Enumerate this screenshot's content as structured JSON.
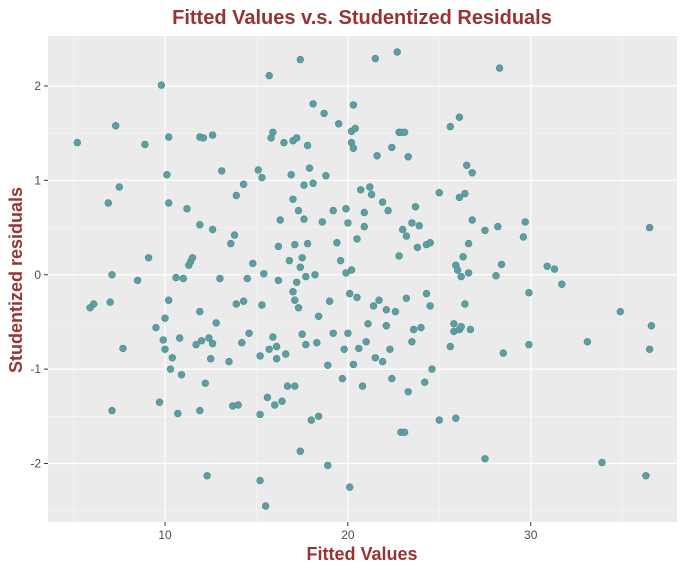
{
  "colors": {
    "title": "#993333",
    "panel_background": "#ebebeb",
    "grid_major": "#ffffff",
    "grid_minor": "#f5f5f5",
    "point_fill": "#5f9ea0",
    "point_stroke": "#4a8c8e",
    "tick_text": "#4d4d4d",
    "tick_mark": "#333333"
  },
  "chart_data": {
    "type": "scatter",
    "title": "Fitted Values v.s. Studentized Residuals",
    "xlabel": "Fitted Values",
    "ylabel": "Studentized residuals",
    "xlim": [
      3.6,
      38.0
    ],
    "ylim": [
      -2.62,
      2.53
    ],
    "x_ticks": [
      10,
      20,
      30
    ],
    "y_ticks": [
      -2,
      -1,
      0,
      1,
      2
    ],
    "x_tick_labels": [
      "10",
      "20",
      "30"
    ],
    "y_tick_labels": [
      "-2",
      "-1",
      "0",
      "1",
      "2"
    ],
    "grid": true,
    "legend": "none",
    "points": [
      [
        5.2,
        1.4
      ],
      [
        5.9,
        -0.35
      ],
      [
        6.1,
        -0.31
      ],
      [
        6.9,
        0.76
      ],
      [
        7.0,
        -0.29
      ],
      [
        7.1,
        0.0
      ],
      [
        7.1,
        -1.44
      ],
      [
        7.3,
        1.58
      ],
      [
        7.5,
        0.93
      ],
      [
        7.7,
        -0.78
      ],
      [
        8.5,
        -0.06
      ],
      [
        8.9,
        1.38
      ],
      [
        9.1,
        0.18
      ],
      [
        9.5,
        -0.56
      ],
      [
        9.7,
        -1.35
      ],
      [
        9.8,
        2.01
      ],
      [
        9.9,
        -0.69
      ],
      [
        10.0,
        -0.46
      ],
      [
        10.0,
        -0.79
      ],
      [
        10.1,
        1.06
      ],
      [
        10.2,
        1.46
      ],
      [
        10.2,
        0.76
      ],
      [
        10.2,
        -0.27
      ],
      [
        10.3,
        -1.0
      ],
      [
        10.4,
        -0.88
      ],
      [
        10.6,
        -0.03
      ],
      [
        10.7,
        -1.47
      ],
      [
        10.8,
        -0.67
      ],
      [
        10.9,
        -1.06
      ],
      [
        11.0,
        -0.04
      ],
      [
        11.2,
        0.7
      ],
      [
        11.3,
        0.1
      ],
      [
        11.4,
        0.14
      ],
      [
        11.5,
        0.18
      ],
      [
        11.7,
        -0.74
      ],
      [
        11.9,
        1.46
      ],
      [
        11.9,
        0.53
      ],
      [
        11.9,
        -0.39
      ],
      [
        11.9,
        -1.44
      ],
      [
        12.0,
        -0.7
      ],
      [
        12.1,
        1.45
      ],
      [
        12.2,
        -1.15
      ],
      [
        12.3,
        -2.13
      ],
      [
        12.4,
        -0.67
      ],
      [
        12.5,
        -0.89
      ],
      [
        12.6,
        0.48
      ],
      [
        12.6,
        -0.73
      ],
      [
        12.6,
        1.48
      ],
      [
        12.8,
        -0.51
      ],
      [
        13.0,
        -0.04
      ],
      [
        13.1,
        1.1
      ],
      [
        13.5,
        -0.92
      ],
      [
        13.6,
        0.33
      ],
      [
        13.7,
        -1.39
      ],
      [
        13.8,
        0.42
      ],
      [
        13.9,
        0.84
      ],
      [
        13.9,
        -0.31
      ],
      [
        14.0,
        -1.38
      ],
      [
        14.2,
        -0.72
      ],
      [
        14.3,
        0.96
      ],
      [
        14.3,
        -0.28
      ],
      [
        14.5,
        -0.04
      ],
      [
        14.6,
        -0.62
      ],
      [
        14.8,
        0.12
      ],
      [
        15.1,
        1.11
      ],
      [
        15.2,
        -0.86
      ],
      [
        15.2,
        -2.18
      ],
      [
        15.2,
        -1.48
      ],
      [
        15.3,
        1.03
      ],
      [
        15.3,
        -0.32
      ],
      [
        15.4,
        0.01
      ],
      [
        15.5,
        -2.45
      ],
      [
        15.6,
        -1.3
      ],
      [
        15.7,
        -0.79
      ],
      [
        15.7,
        2.11
      ],
      [
        15.8,
        1.45
      ],
      [
        15.9,
        1.51
      ],
      [
        15.9,
        -0.66
      ],
      [
        16.0,
        -1.38
      ],
      [
        16.1,
        -0.89
      ],
      [
        16.1,
        -0.76
      ],
      [
        16.2,
        0.3
      ],
      [
        16.2,
        -0.06
      ],
      [
        16.3,
        0.58
      ],
      [
        16.4,
        -1.34
      ],
      [
        16.5,
        1.4
      ],
      [
        16.6,
        -0.84
      ],
      [
        16.7,
        -1.18
      ],
      [
        16.8,
        0.15
      ],
      [
        16.9,
        1.06
      ],
      [
        17.0,
        -0.18
      ],
      [
        17.0,
        1.42
      ],
      [
        17.0,
        0.8
      ],
      [
        17.1,
        0.32
      ],
      [
        17.1,
        -0.27
      ],
      [
        17.1,
        -1.18
      ],
      [
        17.2,
        -0.08
      ],
      [
        17.2,
        1.45
      ],
      [
        17.3,
        0.68
      ],
      [
        17.3,
        -0.35
      ],
      [
        17.4,
        0.08
      ],
      [
        17.4,
        -1.87
      ],
      [
        17.4,
        2.28
      ],
      [
        17.5,
        -0.63
      ],
      [
        17.5,
        0.18
      ],
      [
        17.6,
        0.59
      ],
      [
        17.6,
        0.95
      ],
      [
        17.7,
        -0.02
      ],
      [
        17.7,
        -0.74
      ],
      [
        17.8,
        1.37
      ],
      [
        17.8,
        0.33
      ],
      [
        17.9,
        1.13
      ],
      [
        18.0,
        -1.54
      ],
      [
        18.1,
        0.97
      ],
      [
        18.1,
        1.81
      ],
      [
        18.2,
        0.0
      ],
      [
        18.3,
        -0.72
      ],
      [
        18.4,
        -0.44
      ],
      [
        18.4,
        -1.5
      ],
      [
        18.6,
        0.56
      ],
      [
        18.7,
        1.71
      ],
      [
        18.8,
        1.05
      ],
      [
        18.9,
        -0.96
      ],
      [
        18.9,
        -2.02
      ],
      [
        19.0,
        -0.28
      ],
      [
        19.2,
        0.68
      ],
      [
        19.2,
        -0.62
      ],
      [
        19.4,
        0.34
      ],
      [
        19.5,
        1.6
      ],
      [
        19.6,
        0.15
      ],
      [
        19.7,
        -1.1
      ],
      [
        19.8,
        -0.79
      ],
      [
        19.9,
        0.7
      ],
      [
        19.9,
        0.02
      ],
      [
        20.0,
        -0.62
      ],
      [
        20.0,
        0.55
      ],
      [
        20.1,
        -0.2
      ],
      [
        20.1,
        -2.25
      ],
      [
        20.2,
        0.05
      ],
      [
        20.2,
        1.52
      ],
      [
        20.2,
        1.4
      ],
      [
        20.3,
        1.34
      ],
      [
        20.3,
        1.8
      ],
      [
        20.3,
        -0.95
      ],
      [
        20.4,
        1.55
      ],
      [
        20.5,
        0.38
      ],
      [
        20.5,
        -0.24
      ],
      [
        20.6,
        -0.78
      ],
      [
        20.7,
        0.9
      ],
      [
        20.8,
        -1.18
      ],
      [
        20.9,
        0.66
      ],
      [
        20.9,
        0.51
      ],
      [
        21.0,
        -0.71
      ],
      [
        21.1,
        -0.52
      ],
      [
        21.2,
        0.93
      ],
      [
        21.3,
        0.85
      ],
      [
        21.4,
        -0.33
      ],
      [
        21.5,
        2.29
      ],
      [
        21.5,
        -0.88
      ],
      [
        21.6,
        1.26
      ],
      [
        21.7,
        -0.27
      ],
      [
        21.9,
        -0.92
      ],
      [
        21.9,
        0.77
      ],
      [
        22.1,
        -0.54
      ],
      [
        22.1,
        -0.37
      ],
      [
        22.2,
        0.68
      ],
      [
        22.3,
        -0.79
      ],
      [
        22.4,
        -1.1
      ],
      [
        22.4,
        1.35
      ],
      [
        22.6,
        -0.39
      ],
      [
        22.7,
        2.36
      ],
      [
        22.8,
        0.2
      ],
      [
        22.8,
        1.51
      ],
      [
        22.9,
        1.51
      ],
      [
        22.9,
        -1.67
      ],
      [
        23.0,
        0.48
      ],
      [
        23.1,
        1.51
      ],
      [
        23.1,
        -1.67
      ],
      [
        23.2,
        0.41
      ],
      [
        23.2,
        -0.25
      ],
      [
        23.3,
        1.25
      ],
      [
        23.3,
        -1.24
      ],
      [
        23.5,
        -0.71
      ],
      [
        23.5,
        0.55
      ],
      [
        23.6,
        -0.58
      ],
      [
        23.7,
        0.72
      ],
      [
        23.8,
        0.29
      ],
      [
        23.9,
        0.52
      ],
      [
        24.0,
        -0.56
      ],
      [
        24.2,
        -1.14
      ],
      [
        24.3,
        -0.2
      ],
      [
        24.3,
        0.32
      ],
      [
        24.5,
        -0.33
      ],
      [
        24.5,
        0.34
      ],
      [
        24.6,
        -1.0
      ],
      [
        25.0,
        0.87
      ],
      [
        25.0,
        -1.54
      ],
      [
        25.6,
        1.57
      ],
      [
        25.6,
        -0.76
      ],
      [
        25.8,
        -0.52
      ],
      [
        25.8,
        -0.6
      ],
      [
        25.9,
        0.1
      ],
      [
        25.9,
        -1.52
      ],
      [
        26.0,
        0.05
      ],
      [
        26.1,
        -0.58
      ],
      [
        26.1,
        1.67
      ],
      [
        26.1,
        0.82
      ],
      [
        26.2,
        -0.55
      ],
      [
        26.2,
        -0.02
      ],
      [
        26.3,
        0.19
      ],
      [
        26.4,
        0.86
      ],
      [
        26.4,
        -0.31
      ],
      [
        26.5,
        1.16
      ],
      [
        26.6,
        0.02
      ],
      [
        26.6,
        0.33
      ],
      [
        26.7,
        -0.58
      ],
      [
        26.8,
        1.08
      ],
      [
        26.8,
        0.58
      ],
      [
        27.5,
        -1.95
      ],
      [
        27.5,
        0.47
      ],
      [
        28.1,
        -0.01
      ],
      [
        28.2,
        0.51
      ],
      [
        28.3,
        2.19
      ],
      [
        28.4,
        0.11
      ],
      [
        28.5,
        -0.83
      ],
      [
        29.6,
        0.4
      ],
      [
        29.7,
        0.56
      ],
      [
        29.9,
        -0.19
      ],
      [
        29.9,
        -0.74
      ],
      [
        30.9,
        0.09
      ],
      [
        31.3,
        0.06
      ],
      [
        31.7,
        -0.1
      ],
      [
        33.1,
        -0.71
      ],
      [
        33.9,
        -1.99
      ],
      [
        34.9,
        -0.39
      ],
      [
        36.3,
        -2.13
      ],
      [
        36.5,
        0.5
      ],
      [
        36.5,
        -0.79
      ],
      [
        36.6,
        -0.54
      ]
    ]
  }
}
